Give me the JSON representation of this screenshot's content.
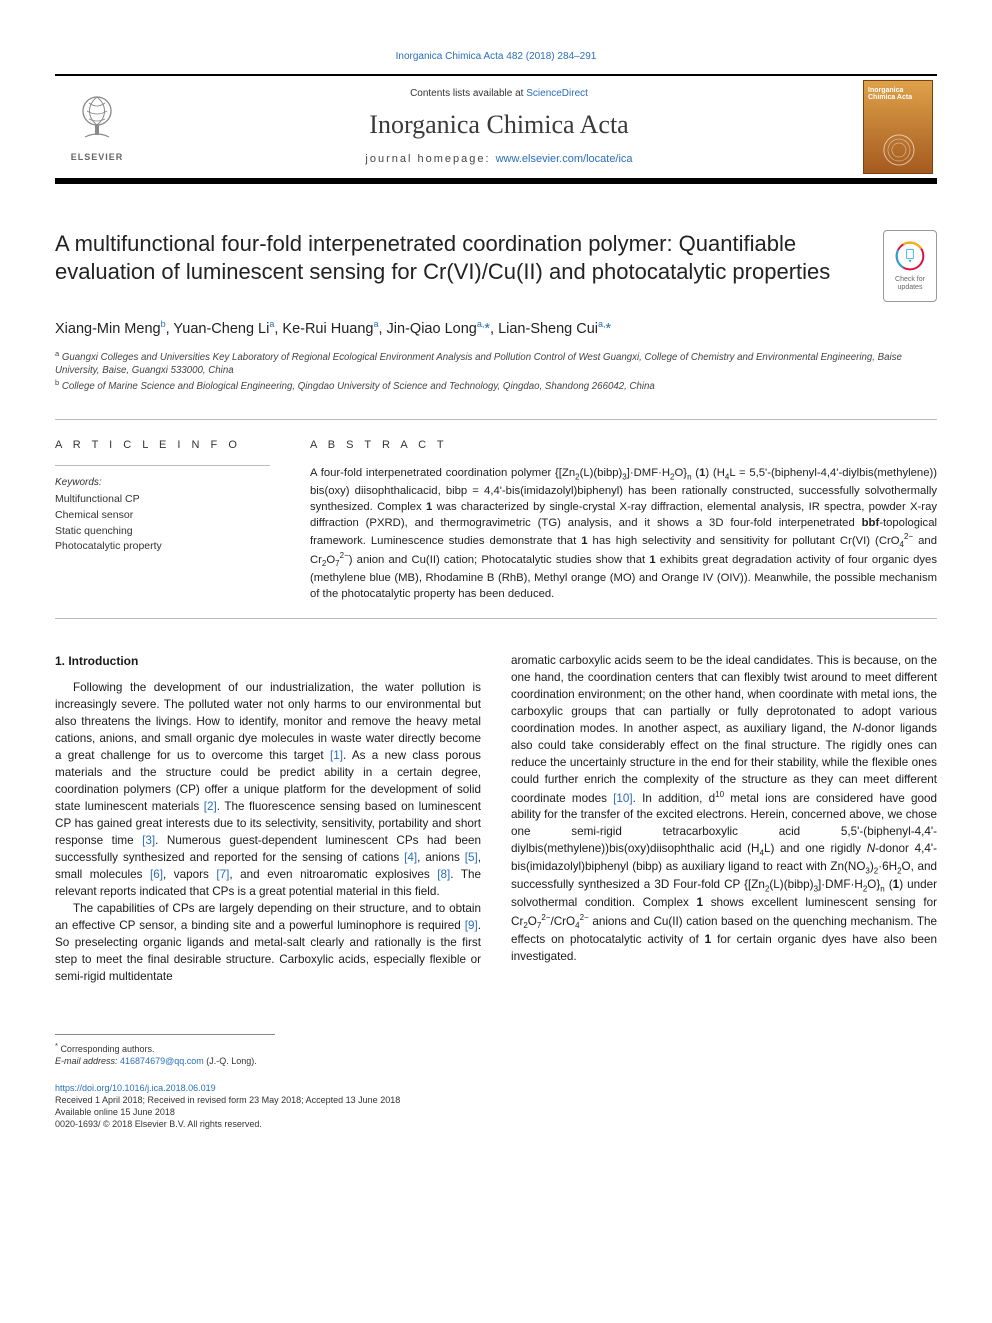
{
  "journal_ref": "Inorganica Chimica Acta 482 (2018) 284–291",
  "header": {
    "contents_line_prefix": "Contents lists available at ",
    "contents_line_link": "ScienceDirect",
    "journal_title": "Inorganica Chimica Acta",
    "homepage_label": "journal homepage: ",
    "homepage_url": "www.elsevier.com/locate/ica",
    "elsevier_word": "ELSEVIER",
    "cover_text": "Inorganica Chimica Acta"
  },
  "updates_badge": "Check for updates",
  "title": "A multifunctional four-fold interpenetrated coordination polymer: Quantifiable evaluation of luminescent sensing for Cr(VI)/Cu(II) and photocatalytic properties",
  "authors_html": "Xiang-Min Meng<sup>b</sup>, Yuan-Cheng Li<sup>a</sup>, Ke-Rui Huang<sup>a</sup>, Jin-Qiao Long<sup>a,</sup><span class='ast'>*</span>, Lian-Sheng Cui<sup>a,</sup><span class='ast'>*</span>",
  "affiliations": {
    "a": "Guangxi Colleges and Universities Key Laboratory of Regional Ecological Environment Analysis and Pollution Control of West Guangxi, College of Chemistry and Environmental Engineering, Baise University, Baise, Guangxi 533000, China",
    "b": "College of Marine Science and Biological Engineering, Qingdao University of Science and Technology, Qingdao, Shandong 266042, China"
  },
  "article_info": {
    "heading": "A R T I C L E  I N F O",
    "keywords_label": "Keywords:",
    "keywords": [
      "Multifunctional CP",
      "Chemical sensor",
      "Static quenching",
      "Photocatalytic property"
    ]
  },
  "abstract": {
    "heading": "A B S T R A C T",
    "text_html": "A four-fold interpenetrated coordination polymer {[Zn<sub>2</sub>(L)(bibp)<sub>3</sub>]·DMF·H<sub>2</sub>O}<sub>n</sub> (<b>1</b>) (H<sub>4</sub>L = 5,5'-(biphenyl-4,4'-diylbis(methylene)) bis(oxy) diisophthalicacid, bibp = 4,4'-bis(imidazolyl)biphenyl) has been rationally constructed, successfully solvothermally synthesized. Complex <b>1</b> was characterized by single-crystal X-ray diffraction, elemental analysis, IR spectra, powder X-ray diffraction (PXRD), and thermogravimetric (TG) analysis, and it shows a 3D four-fold interpenetrated <b>bbf</b>-topological framework. Luminescence studies demonstrate that <b>1</b> has high selectivity and sensitivity for pollutant Cr(VI) (CrO<sub>4</sub><sup>2−</sup> and Cr<sub>2</sub>O<sub>7</sub><sup>2−</sup>) anion and Cu(II) cation; Photocatalytic studies show that <b>1</b> exhibits great degradation activity of four organic dyes (methylene blue (MB), Rhodamine B (RhB), Methyl orange (MO) and Orange IV (OIV)). Meanwhile, the possible mechanism of the photocatalytic property has been deduced."
  },
  "introduction": {
    "heading": "1. Introduction",
    "col1_p1_html": "Following the development of our industrialization, the water pollution is increasingly severe. The polluted water not only harms to our environmental but also threatens the livings. How to identify, monitor and remove the heavy metal cations, anions, and small organic dye molecules in waste water directly become a great challenge for us to overcome this target <span class='ref'>[1]</span>. As a new class porous materials and the structure could be predict ability in a certain degree, coordination polymers (CP) offer a unique platform for the development of solid state luminescent materials <span class='ref'>[2]</span>. The fluorescence sensing based on luminescent CP has gained great interests due to its selectivity, sensitivity, portability and short response time <span class='ref'>[3]</span>. Numerous guest-dependent luminescent CPs had been successfully synthesized and reported for the sensing of cations <span class='ref'>[4]</span>, anions <span class='ref'>[5]</span>, small molecules <span class='ref'>[6]</span>, vapors <span class='ref'>[7]</span>, and even nitroaromatic explosives <span class='ref'>[8]</span>. The relevant reports indicated that CPs is a great potential material in this field.",
    "col1_p2_html": "The capabilities of CPs are largely depending on their structure, and to obtain an effective CP sensor, a binding site and a powerful luminophore is required <span class='ref'>[9]</span>. So preselecting organic ligands and metal-salt clearly and rationally is the first step to meet the final desirable structure. Carboxylic acids, especially flexible or semi-rigid multidentate",
    "col2_p1_html": "aromatic carboxylic acids seem to be the ideal candidates. This is because, on the one hand, the coordination centers that can flexibly twist around to meet different coordination environment; on the other hand, when coordinate with metal ions, the carboxylic groups that can partially or fully deprotonated to adopt various coordination modes. In another aspect, as auxiliary ligand, the <i>N</i>-donor ligands also could take considerably effect on the final structure. The rigidly ones can reduce the uncertainly structure in the end for their stability, while the flexible ones could further enrich the complexity of the structure as they can meet different coordinate modes <span class='ref'>[10]</span>. In addition, d<sup>10</sup> metal ions are considered have good ability for the transfer of the excited electrons. Herein, concerned above, we chose one semi-rigid tetracarboxylic acid 5,5'-(biphenyl-4,4'-diylbis(methylene))bis(oxy)diisophthalic acid (H<sub>4</sub>L) and one rigidly <i>N</i>-donor 4,4'-bis(imidazolyl)biphenyl (bibp) as auxiliary ligand to react with Zn(NO<sub>3</sub>)<sub>2</sub>·6H<sub>2</sub>O, and successfully synthesized a 3D Four-fold CP {[Zn<sub>2</sub>(L)(bibp)<sub>3</sub>]·DMF·H<sub>2</sub>O}<sub>n</sub> (<b>1</b>) under solvothermal condition. Complex <b>1</b> shows excellent luminescent sensing for Cr<sub>2</sub>O<sub>7</sub><sup>2−</sup>/CrO<sub>4</sub><sup>2−</sup> anions and Cu(II) cation based on the quenching mechanism. The effects on photocatalytic activity of <b>1</b> for certain organic dyes have also been investigated."
  },
  "footnotes": {
    "corresponding": "Corresponding authors.",
    "email_label": "E-mail address: ",
    "email": "416874679@qq.com",
    "email_person": " (J.-Q. Long)."
  },
  "doi_block": {
    "doi": "https://doi.org/10.1016/j.ica.2018.06.019",
    "received": "Received 1 April 2018; Received in revised form 23 May 2018; Accepted 13 June 2018",
    "available": "Available online 15 June 2018",
    "copyright": "0020-1693/ © 2018 Elsevier B.V. All rights reserved."
  },
  "colors": {
    "link": "#2a6ebb",
    "band_border": "#000000",
    "cover_grad_top": "#dfa24a",
    "cover_grad_bottom": "#a55a1f"
  }
}
